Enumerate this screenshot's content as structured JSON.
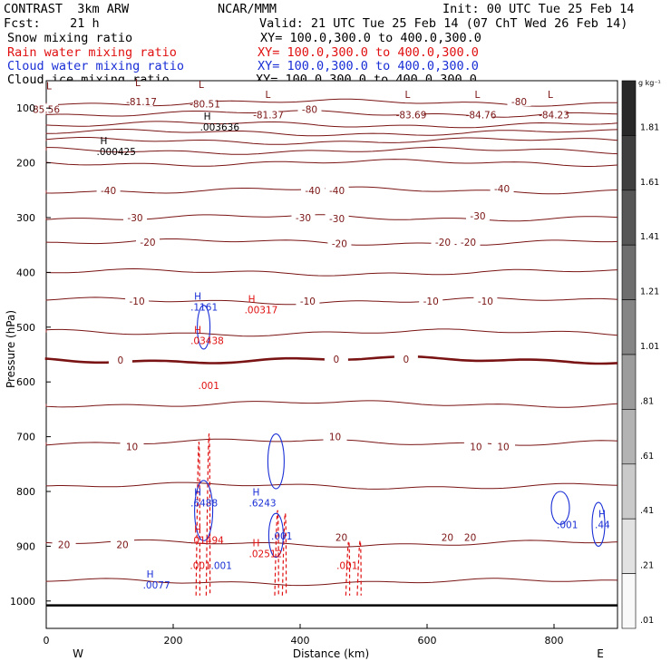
{
  "header": {
    "left": [
      "CONTRAST  3km ARW",
      "Fcst:    21 h"
    ],
    "center_top": "NCAR/MMM",
    "valid": "Valid: 21 UTC Tue 25 Feb 14 (07 ChT Wed 26 Feb 14)",
    "init": "Init: 00 UTC Tue 25 Feb 14",
    "fields": [
      {
        "name": "Snow mixing ratio",
        "xy": "XY= 100.0,300.0 to 400.0,300.0",
        "color": "#000000"
      },
      {
        "name": "Rain water mixing ratio",
        "xy": "XY= 100.0,300.0 to 400.0,300.0",
        "color": "#e01010"
      },
      {
        "name": "Cloud water mixing ratio",
        "xy": "XY= 100.0,300.0 to 400.0,300.0",
        "color": "#1a2fd6"
      },
      {
        "name": "Cloud ice mixing ratio",
        "xy": "XY= 100.0,300.0 to 400.0,300.0",
        "color": "#000000"
      }
    ]
  },
  "chart_data": {
    "type": "line",
    "xlabel": "Distance (km)",
    "ylabel": "Pressure (hPa)",
    "xlim": [
      0,
      900
    ],
    "ylim": [
      1050,
      50
    ],
    "x_ticks": [
      "0",
      "200",
      "400",
      "600",
      "800"
    ],
    "x_tick_values": [
      0,
      200,
      400,
      600,
      800
    ],
    "y_ticks": [
      "100",
      "200",
      "300",
      "400",
      "500",
      "600",
      "700",
      "800",
      "900",
      "1000"
    ],
    "y_tick_values": [
      100,
      200,
      300,
      400,
      500,
      600,
      700,
      800,
      900,
      1000
    ],
    "end_labels": {
      "left": "W",
      "right": "E"
    },
    "isotherm_color": "#7a1414",
    "isotherm_levels": [
      90,
      110,
      130,
      145,
      160,
      178,
      200,
      250,
      300,
      345,
      400,
      452,
      510,
      560,
      640,
      710,
      790,
      895,
      965
    ],
    "isotherm_labels": [
      {
        "x": 150,
        "p": 88,
        "t": "-81.17"
      },
      {
        "x": 250,
        "p": 92,
        "t": "-80.51"
      },
      {
        "x": 0,
        "p": 102,
        "t": "85.56"
      },
      {
        "x": 415,
        "p": 102,
        "t": "-80"
      },
      {
        "x": 350,
        "p": 112,
        "t": "-81.37"
      },
      {
        "x": 575,
        "p": 112,
        "t": "-83.69"
      },
      {
        "x": 685,
        "p": 112,
        "t": "-84.76"
      },
      {
        "x": 800,
        "p": 112,
        "t": "-84.23"
      },
      {
        "x": 745,
        "p": 88,
        "t": "-80"
      },
      {
        "x": 98,
        "p": 250,
        "t": "-40"
      },
      {
        "x": 420,
        "p": 250,
        "t": "-40"
      },
      {
        "x": 458,
        "p": 250,
        "t": "-40"
      },
      {
        "x": 718,
        "p": 247,
        "t": "-40"
      },
      {
        "x": 140,
        "p": 300,
        "t": "-30"
      },
      {
        "x": 405,
        "p": 300,
        "t": "-30"
      },
      {
        "x": 458,
        "p": 302,
        "t": "-30"
      },
      {
        "x": 680,
        "p": 297,
        "t": "-30"
      },
      {
        "x": 160,
        "p": 345,
        "t": "-20"
      },
      {
        "x": 462,
        "p": 347,
        "t": "-20"
      },
      {
        "x": 625,
        "p": 345,
        "t": "-20"
      },
      {
        "x": 665,
        "p": 345,
        "t": "-20"
      },
      {
        "x": 143,
        "p": 452,
        "t": "-10"
      },
      {
        "x": 412,
        "p": 452,
        "t": "-10"
      },
      {
        "x": 606,
        "p": 452,
        "t": "-10"
      },
      {
        "x": 692,
        "p": 452,
        "t": "-10"
      },
      {
        "x": 117,
        "p": 560,
        "t": "0"
      },
      {
        "x": 457,
        "p": 558,
        "t": "0"
      },
      {
        "x": 567,
        "p": 558,
        "t": "0"
      },
      {
        "x": 135,
        "p": 718,
        "t": "10"
      },
      {
        "x": 455,
        "p": 700,
        "t": "10"
      },
      {
        "x": 677,
        "p": 718,
        "t": "10"
      },
      {
        "x": 720,
        "p": 718,
        "t": "10"
      },
      {
        "x": 28,
        "p": 897,
        "t": "20"
      },
      {
        "x": 120,
        "p": 897,
        "t": "20"
      },
      {
        "x": 465,
        "p": 884,
        "t": "20"
      },
      {
        "x": 632,
        "p": 884,
        "t": "20"
      },
      {
        "x": 668,
        "p": 884,
        "t": "20"
      }
    ],
    "extrema": [
      {
        "sym": "L",
        "x": 0,
        "p": 81,
        "t": "",
        "color": "#7a1414"
      },
      {
        "sym": "L",
        "x": 140,
        "p": 75,
        "t": "",
        "color": "#7a1414"
      },
      {
        "sym": "L",
        "x": 240,
        "p": 78,
        "t": "",
        "color": "#7a1414"
      },
      {
        "sym": "L",
        "x": 345,
        "p": 96,
        "t": "",
        "color": "#7a1414"
      },
      {
        "sym": "L",
        "x": 565,
        "p": 96,
        "t": "",
        "color": "#7a1414"
      },
      {
        "sym": "L",
        "x": 675,
        "p": 96,
        "t": "",
        "color": "#7a1414"
      },
      {
        "sym": "L",
        "x": 790,
        "p": 96,
        "t": "",
        "color": "#7a1414"
      },
      {
        "sym": "H",
        "x": 248,
        "p": 136,
        "t": ".003636",
        "color": "#000000"
      },
      {
        "sym": "H",
        "x": 85,
        "p": 181,
        "t": ".000425",
        "color": "#000000"
      },
      {
        "sym": "H",
        "x": 233,
        "p": 465,
        "t": ".1161",
        "color": "#1a2fd6"
      },
      {
        "sym": "H",
        "x": 233,
        "p": 526,
        "t": ".03438",
        "color": "#e01010"
      },
      {
        "sym": "H",
        "x": 318,
        "p": 470,
        "t": ".00317",
        "color": "#e01010"
      },
      {
        "sym": "",
        "x": 245,
        "p": 608,
        "t": ".001",
        "color": "#e01010"
      },
      {
        "sym": "H",
        "x": 233,
        "p": 822,
        "t": ".6488",
        "color": "#1a2fd6"
      },
      {
        "sym": "H",
        "x": 325,
        "p": 822,
        "t": ".6243",
        "color": "#1a2fd6"
      },
      {
        "sym": "H",
        "x": 233,
        "p": 890,
        "t": ".01494",
        "color": "#e01010"
      },
      {
        "sym": "H",
        "x": 325,
        "p": 915,
        "t": ".02512",
        "color": "#e01010"
      },
      {
        "sym": "",
        "x": 360,
        "p": 883,
        "t": ".001",
        "color": "#1a2fd6"
      },
      {
        "sym": "",
        "x": 232,
        "p": 937,
        "t": ".001",
        "color": "#e01010"
      },
      {
        "sym": "",
        "x": 265,
        "p": 937,
        "t": ".001",
        "color": "#1a2fd6"
      },
      {
        "sym": "",
        "x": 463,
        "p": 937,
        "t": ".001",
        "color": "#e01010"
      },
      {
        "sym": "H",
        "x": 158,
        "p": 972,
        "t": ".0077",
        "color": "#1a2fd6"
      },
      {
        "sym": "",
        "x": 810,
        "p": 862,
        "t": ".001",
        "color": "#1a2fd6"
      },
      {
        "sym": "H",
        "x": 870,
        "p": 862,
        "t": ".44",
        "color": "#1a2fd6"
      }
    ],
    "colorbar": {
      "unit": "g kg⁻¹",
      "labels": [
        "1.81",
        "1.61",
        "1.41",
        "1.21",
        "1.01",
        ".81",
        ".61",
        ".41",
        ".21",
        ".01"
      ],
      "values": [
        1.81,
        1.61,
        1.41,
        1.21,
        1.01,
        0.81,
        0.61,
        0.41,
        0.21,
        0.01
      ]
    }
  }
}
